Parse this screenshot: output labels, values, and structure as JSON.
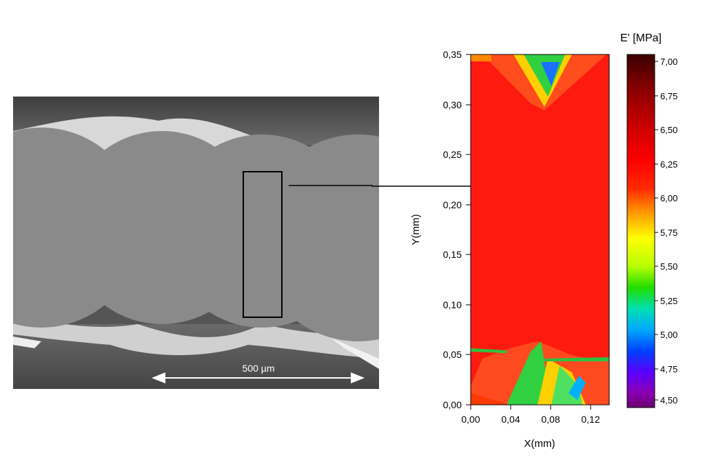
{
  "sem_image": {
    "scale_bar_label": "500 µm"
  },
  "map": {
    "colorbar_title": "E' [MPa]",
    "colorbar_ticks": [
      "7,00",
      "6,75",
      "6,50",
      "6,25",
      "6,00",
      "5,75",
      "5,50",
      "5,25",
      "5,00",
      "4,75",
      "4,50"
    ],
    "x_axis_label": "X(mm)",
    "y_axis_label": "Y(mm)",
    "x_ticks": [
      "0,00",
      "0,04",
      "0,08",
      "0,12"
    ],
    "y_ticks": [
      "0,35",
      "0,30",
      "0,25",
      "0,20",
      "0,15",
      "0,10",
      "0,05",
      "0,00"
    ]
  },
  "chart_data": {
    "type": "heatmap",
    "xlabel": "X(mm)",
    "ylabel": "Y(mm)",
    "xlim": [
      0.0,
      0.135
    ],
    "ylim": [
      0.0,
      0.35
    ],
    "colorbar_label": "E' [MPa]",
    "colorbar_range": [
      4.5,
      7.0
    ],
    "colorbar_ticks": [
      7.0,
      6.75,
      6.5,
      6.25,
      6.0,
      5.75,
      5.5,
      5.25,
      5.0,
      4.75,
      4.5
    ],
    "x_ticks": [
      0.0,
      0.04,
      0.08,
      0.12
    ],
    "y_ticks": [
      0.0,
      0.05,
      0.1,
      0.15,
      0.2,
      0.25,
      0.3,
      0.35
    ],
    "dominant_value": 6.25
  }
}
